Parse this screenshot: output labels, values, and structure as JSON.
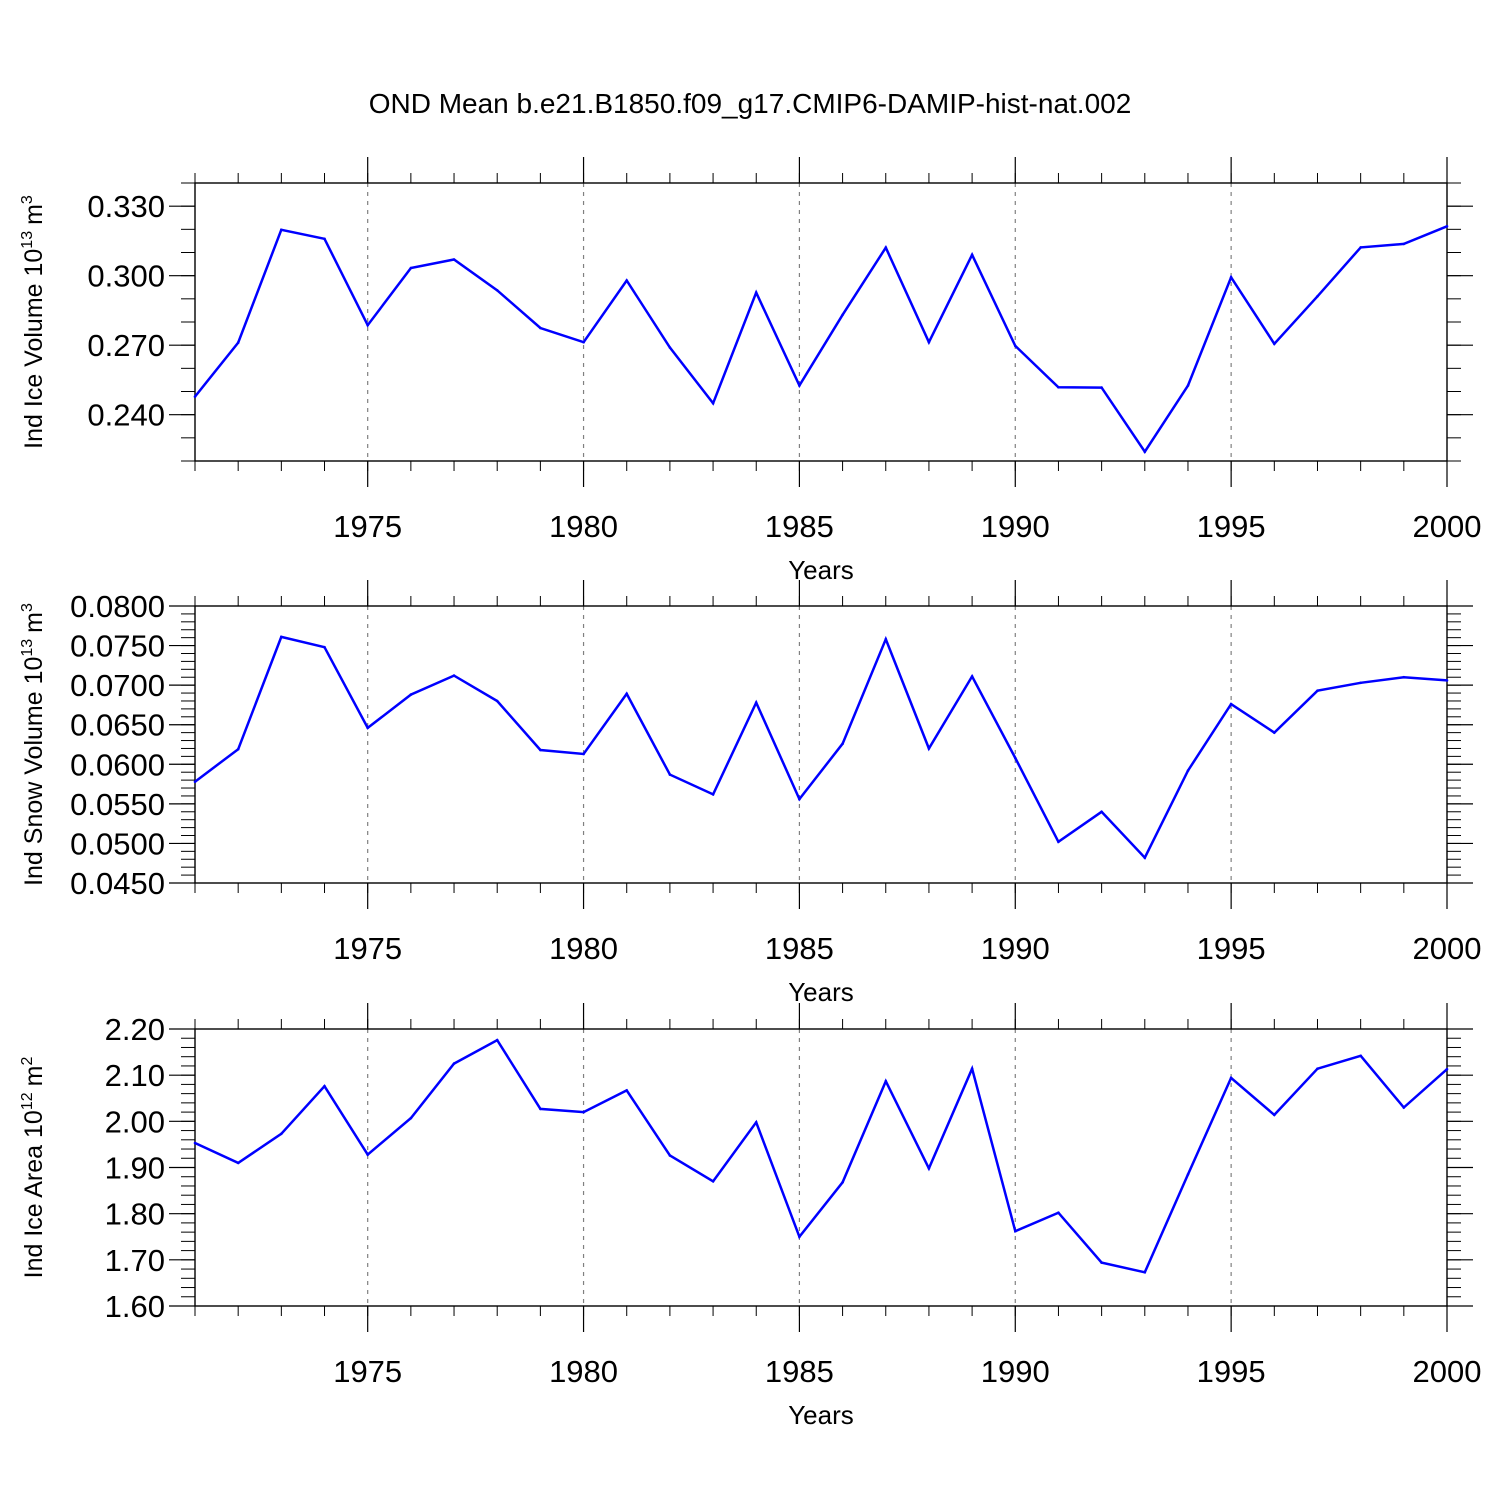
{
  "title": "OND Mean b.e21.B1850.f09_g17.CMIP6-DAMIP-hist-nat.002",
  "colors": {
    "line": "#0000ff",
    "axis": "#000000",
    "grid": "#808080"
  },
  "chart_data": [
    {
      "type": "line",
      "name": "ice-volume",
      "ylabel_main": "Ind Ice Volume 10",
      "ylabel_exp": "13",
      "ylabel_unit": "m",
      "ylabel_unit_exp": "3",
      "xlabel": "Years",
      "xlim": [
        1971,
        2000
      ],
      "ylim": [
        0.22,
        0.34
      ],
      "xticks": [
        1975,
        1980,
        1985,
        1990,
        1995,
        2000
      ],
      "xtick_labels": [
        "1975",
        "1980",
        "1985",
        "1990",
        "1995",
        "2000"
      ],
      "yticks": [
        0.24,
        0.27,
        0.3,
        0.33
      ],
      "ytick_labels": [
        "0.240",
        "0.270",
        "0.300",
        "0.330"
      ],
      "yminor_step": 0.01,
      "x": [
        1971,
        1972,
        1973,
        1974,
        1975,
        1976,
        1977,
        1978,
        1979,
        1980,
        1981,
        1982,
        1983,
        1984,
        1985,
        1986,
        1987,
        1988,
        1989,
        1990,
        1991,
        1992,
        1993,
        1994,
        1995,
        1996,
        1997,
        1998,
        1999,
        2000
      ],
      "values": [
        0.2478,
        0.2711,
        0.3198,
        0.3159,
        0.2786,
        0.3033,
        0.307,
        0.2937,
        0.2774,
        0.2713,
        0.2979,
        0.269,
        0.2449,
        0.2927,
        0.2526,
        0.2831,
        0.3121,
        0.2713,
        0.309,
        0.2697,
        0.2518,
        0.2517,
        0.224,
        0.2526,
        0.2993,
        0.2706,
        0.2911,
        0.3122,
        0.3137,
        0.3213
      ]
    },
    {
      "type": "line",
      "name": "snow-volume",
      "ylabel_main": "Ind Snow Volume 10",
      "ylabel_exp": "13",
      "ylabel_unit": "m",
      "ylabel_unit_exp": "3",
      "xlabel": "Years",
      "xlim": [
        1971,
        2000
      ],
      "ylim": [
        0.045,
        0.08
      ],
      "xticks": [
        1975,
        1980,
        1985,
        1990,
        1995,
        2000
      ],
      "xtick_labels": [
        "1975",
        "1980",
        "1985",
        "1990",
        "1995",
        "2000"
      ],
      "yticks": [
        0.045,
        0.05,
        0.055,
        0.06,
        0.065,
        0.07,
        0.075,
        0.08
      ],
      "ytick_labels": [
        "0.0450",
        "0.0500",
        "0.0550",
        "0.0600",
        "0.0650",
        "0.0700",
        "0.0750",
        "0.0800"
      ],
      "yminor_step": 0.001,
      "x": [
        1971,
        1972,
        1973,
        1974,
        1975,
        1976,
        1977,
        1978,
        1979,
        1980,
        1981,
        1982,
        1983,
        1984,
        1985,
        1986,
        1987,
        1988,
        1989,
        1990,
        1991,
        1992,
        1993,
        1994,
        1995,
        1996,
        1997,
        1998,
        1999,
        2000
      ],
      "values": [
        0.0578,
        0.0619,
        0.0761,
        0.0748,
        0.0646,
        0.0688,
        0.0712,
        0.068,
        0.0618,
        0.0613,
        0.0689,
        0.0587,
        0.0562,
        0.0678,
        0.0556,
        0.0626,
        0.0758,
        0.062,
        0.0711,
        0.0608,
        0.0502,
        0.054,
        0.0482,
        0.0592,
        0.0676,
        0.064,
        0.0693,
        0.0703,
        0.071,
        0.0706
      ]
    },
    {
      "type": "line",
      "name": "ice-area",
      "ylabel_main": "Ind Ice Area 10",
      "ylabel_exp": "12",
      "ylabel_unit": "m",
      "ylabel_unit_exp": "2",
      "xlabel": "Years",
      "xlim": [
        1971,
        2000
      ],
      "ylim": [
        1.6,
        2.2
      ],
      "xticks": [
        1975,
        1980,
        1985,
        1990,
        1995,
        2000
      ],
      "xtick_labels": [
        "1975",
        "1980",
        "1985",
        "1990",
        "1995",
        "2000"
      ],
      "yticks": [
        1.6,
        1.7,
        1.8,
        1.9,
        2.0,
        2.1,
        2.2
      ],
      "ytick_labels": [
        "1.60",
        "1.70",
        "1.80",
        "1.90",
        "2.00",
        "2.10",
        "2.20"
      ],
      "yminor_step": 0.02,
      "x": [
        1971,
        1972,
        1973,
        1974,
        1975,
        1976,
        1977,
        1978,
        1979,
        1980,
        1981,
        1982,
        1983,
        1984,
        1985,
        1986,
        1987,
        1988,
        1989,
        1990,
        1991,
        1992,
        1993,
        1994,
        1995,
        1996,
        1997,
        1998,
        1999,
        2000
      ],
      "values": [
        1.953,
        1.91,
        1.973,
        2.076,
        1.928,
        2.007,
        2.125,
        2.176,
        2.027,
        2.02,
        2.067,
        1.926,
        1.87,
        1.998,
        1.75,
        1.868,
        2.087,
        1.898,
        2.114,
        1.762,
        1.802,
        1.694,
        1.673,
        1.885,
        2.094,
        2.014,
        2.114,
        2.142,
        2.03,
        2.113
      ]
    }
  ]
}
